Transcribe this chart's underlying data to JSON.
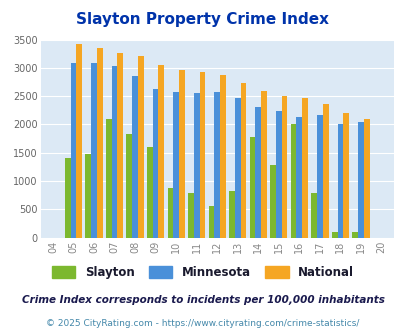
{
  "title": "Slayton Property Crime Index",
  "years": [
    "04",
    "05",
    "06",
    "07",
    "08",
    "09",
    "10",
    "11",
    "12",
    "13",
    "14",
    "15",
    "16",
    "17",
    "18",
    "19",
    "20"
  ],
  "slayton": [
    0,
    1400,
    1470,
    2090,
    1840,
    1600,
    880,
    790,
    565,
    820,
    1770,
    1280,
    2000,
    790,
    105,
    105,
    0
  ],
  "minnesota": [
    0,
    3080,
    3080,
    3040,
    2860,
    2630,
    2570,
    2555,
    2570,
    2460,
    2310,
    2230,
    2130,
    2175,
    2005,
    2050,
    0
  ],
  "national": [
    0,
    3420,
    3350,
    3270,
    3210,
    3050,
    2960,
    2920,
    2870,
    2730,
    2600,
    2510,
    2460,
    2360,
    2200,
    2100,
    0
  ],
  "slayton_color": "#7cb82f",
  "minnesota_color": "#4a90d9",
  "national_color": "#f5a623",
  "bg_color": "#dce9f5",
  "ylim": [
    0,
    3500
  ],
  "yticks": [
    0,
    500,
    1000,
    1500,
    2000,
    2500,
    3000,
    3500
  ],
  "subtitle": "Crime Index corresponds to incidents per 100,000 inhabitants",
  "footer": "© 2025 CityRating.com - https://www.cityrating.com/crime-statistics/",
  "title_color": "#0033aa",
  "subtitle_color": "#1a1a4e",
  "footer_color": "#4488aa",
  "legend_label_color": "#1a1a2e"
}
